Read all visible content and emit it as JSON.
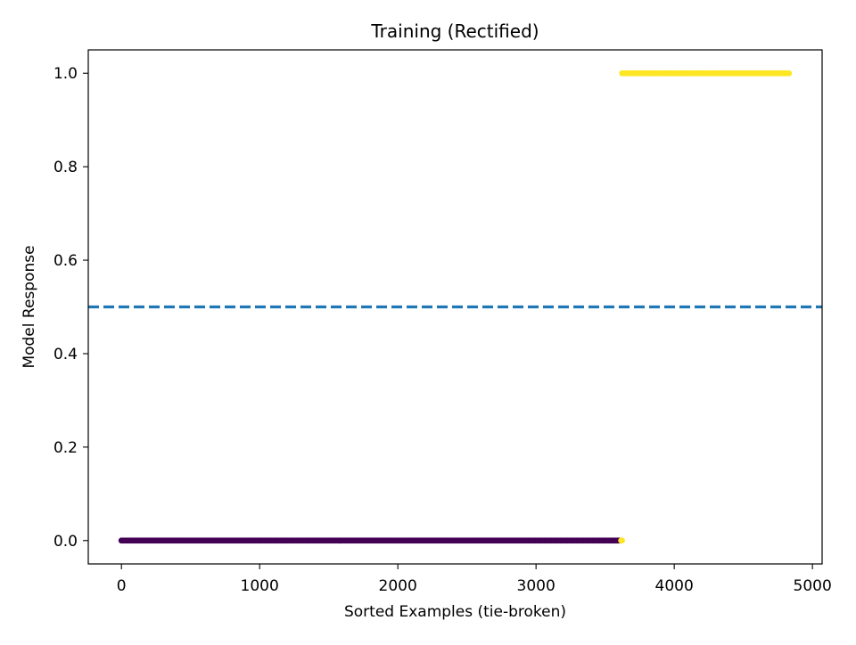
{
  "chart_data": {
    "type": "scatter",
    "title": "Training (Rectified)",
    "xlabel": "Sorted Examples (tie-broken)",
    "ylabel": "Model Response",
    "xlim": [
      -240,
      5070
    ],
    "ylim": [
      -0.05,
      1.05
    ],
    "xticks": [
      0,
      1000,
      2000,
      3000,
      4000,
      5000
    ],
    "xtick_labels": [
      "0",
      "1000",
      "2000",
      "3000",
      "4000",
      "5000"
    ],
    "yticks": [
      0.0,
      0.2,
      0.4,
      0.6,
      0.8,
      1.0
    ],
    "ytick_labels": [
      "0.0",
      "0.2",
      "0.4",
      "0.6",
      "0.8",
      "1.0"
    ],
    "grid": false,
    "threshold": {
      "y": 0.5,
      "style": "dashed",
      "color": "#1f77b4"
    },
    "series": [
      {
        "x_range": [
          0,
          3615
        ],
        "y": 0.0,
        "color": "#440154"
      },
      {
        "x_range": [
          3616,
          3622
        ],
        "y": 0.0,
        "color": "#fde725"
      },
      {
        "x_range": [
          3623,
          4830
        ],
        "y": 1.0,
        "color": "#fde725"
      }
    ]
  }
}
